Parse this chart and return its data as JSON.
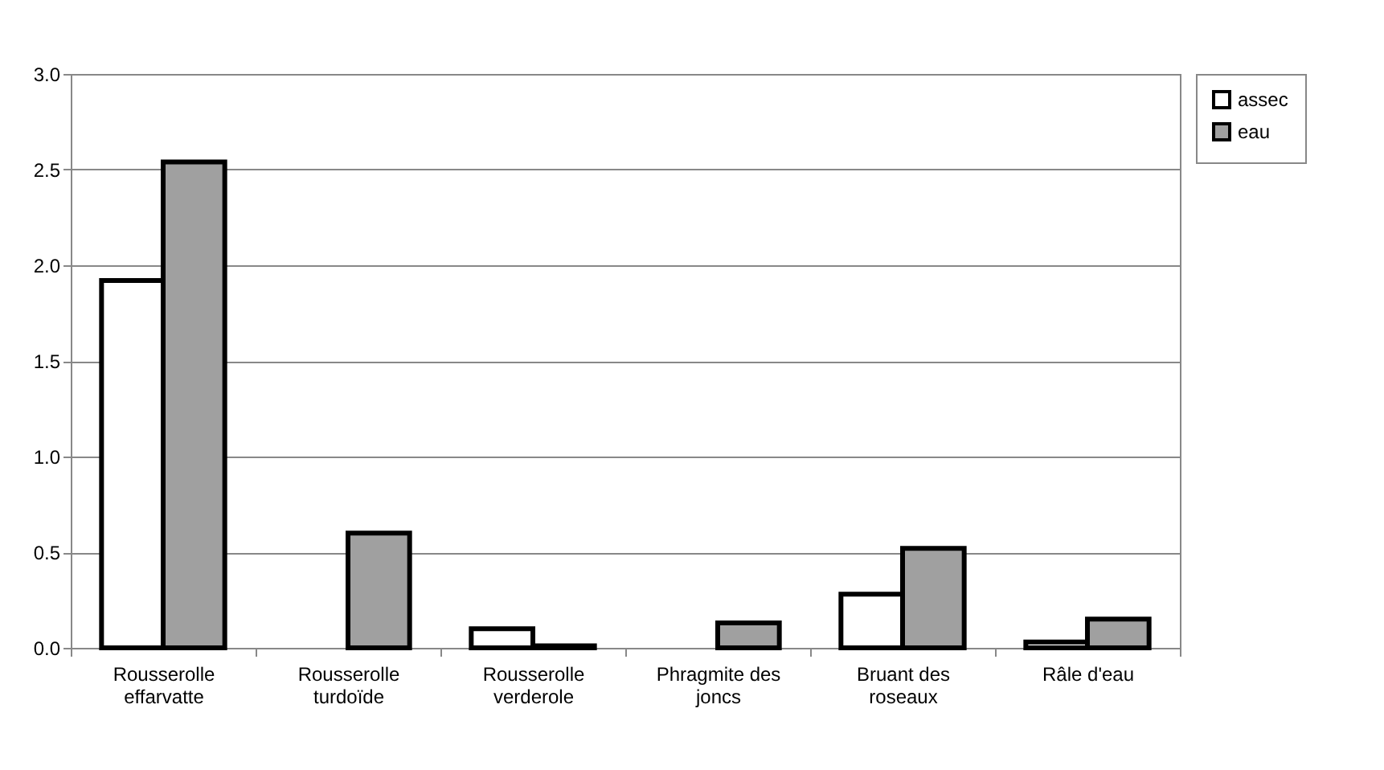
{
  "chart_data": {
    "type": "bar",
    "categories": [
      "Rousserolle effarvatte",
      "Rousserolle turdoïde",
      "Rousserolle verderole",
      "Phragmite des joncs",
      "Bruant des roseaux",
      "Râle d'eau"
    ],
    "series": [
      {
        "name": "assec",
        "color": "#ffffff",
        "values": [
          1.92,
          null,
          0.1,
          null,
          0.28,
          0.03
        ]
      },
      {
        "name": "eau",
        "color": "#a0a0a0",
        "values": [
          2.54,
          0.6,
          0.01,
          0.13,
          0.52,
          0.15
        ]
      }
    ],
    "ylim": [
      0,
      3
    ],
    "yticks": [
      {
        "value": 0,
        "label": "0.0"
      },
      {
        "value": 0.5,
        "label": "0.5"
      },
      {
        "value": 1,
        "label": "1.0"
      },
      {
        "value": 1.5,
        "label": "1.5"
      },
      {
        "value": 2,
        "label": "2.0"
      },
      {
        "value": 2.5,
        "label": "2.5"
      },
      {
        "value": 3,
        "label": "3.0"
      }
    ],
    "grid": "y",
    "legend": "right"
  }
}
